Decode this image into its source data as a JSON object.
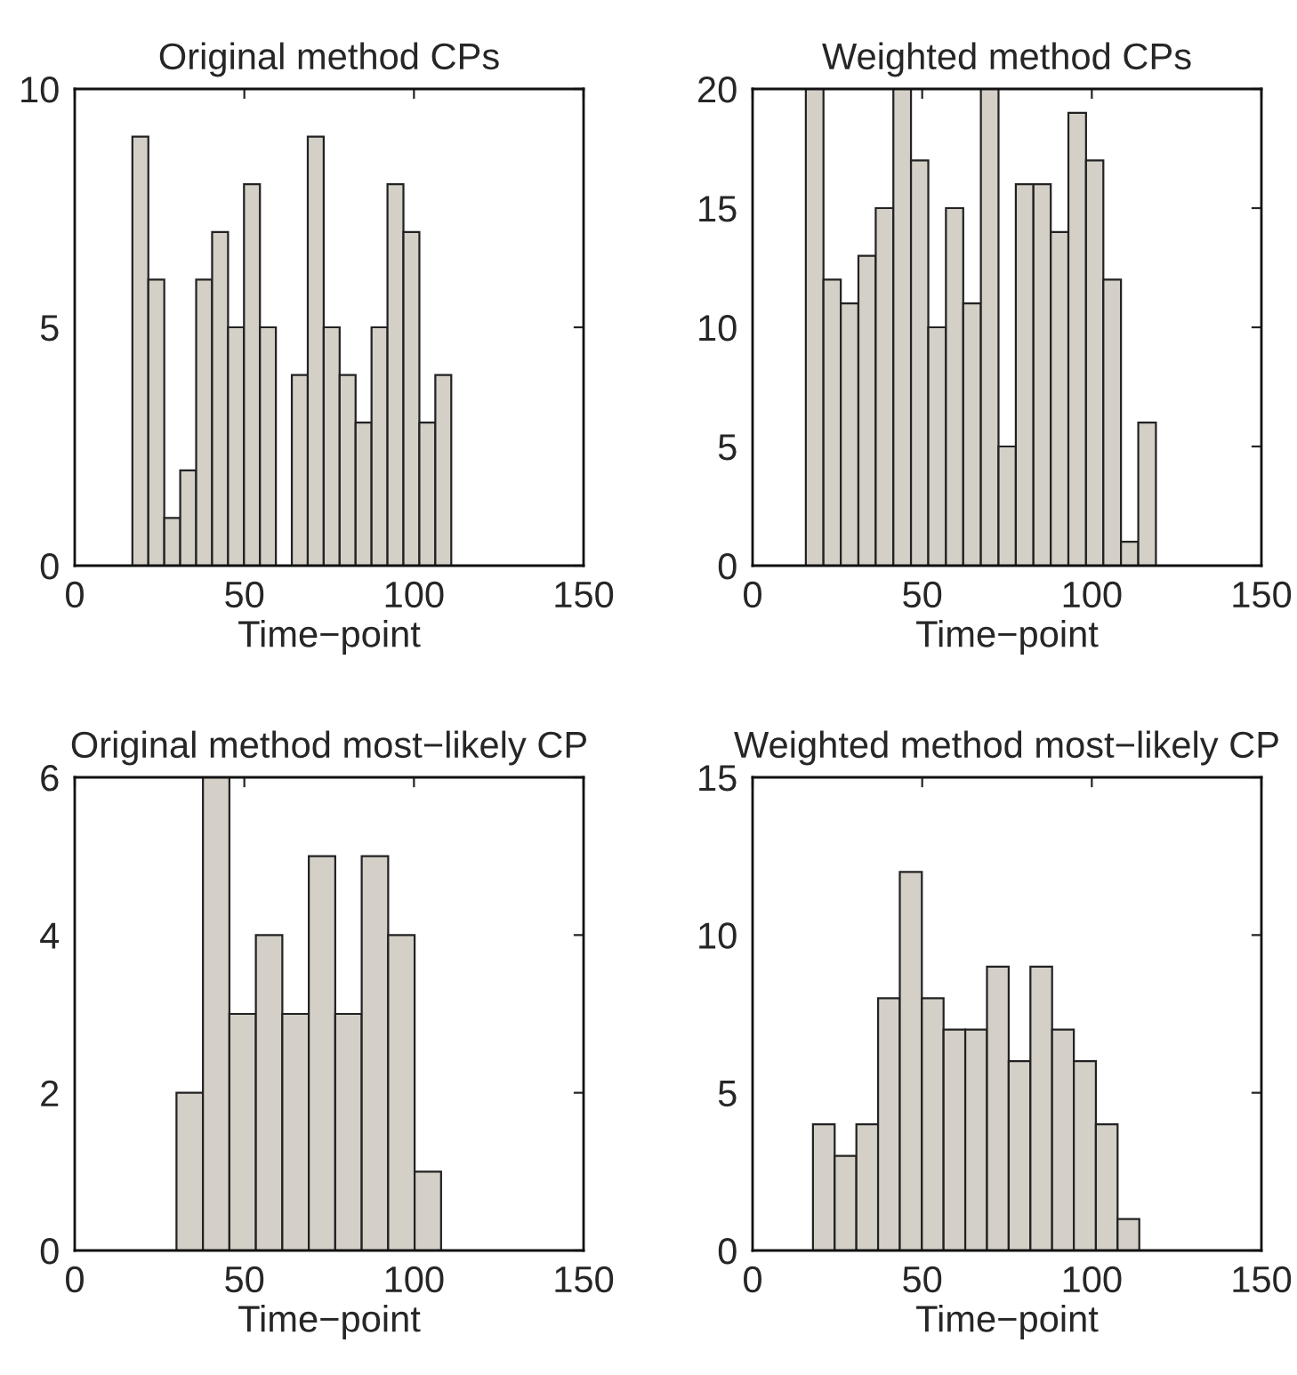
{
  "chart_data": [
    {
      "type": "histogram",
      "title": "Original method CPs",
      "xlabel": "Time−point",
      "color": "#d4d0c8",
      "bins": [
        17.0,
        21.7,
        26.4,
        31.1,
        35.8,
        40.5,
        45.2,
        49.9,
        54.6,
        59.3,
        64.0,
        68.7,
        73.4,
        78.1,
        82.8,
        87.5,
        92.2,
        96.9,
        101.6,
        106.3,
        111.0
      ],
      "values": [
        9,
        6,
        1,
        2,
        6,
        7,
        5,
        8,
        5,
        0,
        4,
        9,
        5,
        4,
        3,
        5,
        8,
        7,
        3,
        4
      ],
      "xlim": [
        0,
        150
      ],
      "xticks": [
        0,
        50,
        100,
        150
      ],
      "ylim": [
        0,
        10
      ],
      "yticks": [
        0,
        5,
        10
      ]
    },
    {
      "type": "histogram",
      "title": "Weighted method CPs",
      "xlabel": "Time−point",
      "color": "#d4d0c8",
      "bins": [
        15.7,
        20.9,
        26.0,
        31.2,
        36.3,
        41.5,
        46.7,
        51.8,
        57.0,
        62.1,
        67.3,
        72.5,
        77.6,
        82.8,
        87.9,
        93.1,
        98.3,
        103.4,
        108.6,
        113.7,
        118.9
      ],
      "values": [
        20,
        12,
        11,
        13,
        15,
        20,
        17,
        10,
        15,
        11,
        20,
        5,
        16,
        16,
        14,
        19,
        17,
        12,
        1,
        6
      ],
      "xlim": [
        0,
        150
      ],
      "xticks": [
        0,
        50,
        100,
        150
      ],
      "ylim": [
        0,
        20
      ],
      "yticks": [
        0,
        5,
        10,
        15,
        20
      ]
    },
    {
      "type": "histogram",
      "title": "Original method most−likely CP",
      "xlabel": "Time−point",
      "color": "#d4d0c8",
      "bins": [
        30.0,
        37.8,
        45.6,
        53.4,
        61.2,
        69.0,
        76.8,
        84.6,
        92.4,
        100.2,
        108.0
      ],
      "values": [
        2,
        6,
        3,
        4,
        3,
        5,
        3,
        5,
        4,
        1
      ],
      "xlim": [
        0,
        150
      ],
      "xticks": [
        0,
        50,
        100,
        150
      ],
      "ylim": [
        0,
        6
      ],
      "yticks": [
        0,
        2,
        4,
        6
      ]
    },
    {
      "type": "histogram",
      "title": "Weighted method most−likely CP",
      "xlabel": "Time−point",
      "color": "#d4d0c8",
      "bins": [
        17.8,
        24.2,
        30.6,
        37.0,
        43.4,
        49.9,
        56.3,
        62.7,
        69.1,
        75.5,
        81.9,
        88.3,
        94.7,
        101.2,
        107.6,
        114.0
      ],
      "values": [
        4,
        3,
        4,
        8,
        12,
        8,
        7,
        7,
        9,
        6,
        9,
        7,
        6,
        4,
        1
      ],
      "xlim": [
        0,
        150
      ],
      "xticks": [
        0,
        50,
        100,
        150
      ],
      "ylim": [
        0,
        15
      ],
      "yticks": [
        0,
        5,
        10,
        15
      ]
    }
  ]
}
